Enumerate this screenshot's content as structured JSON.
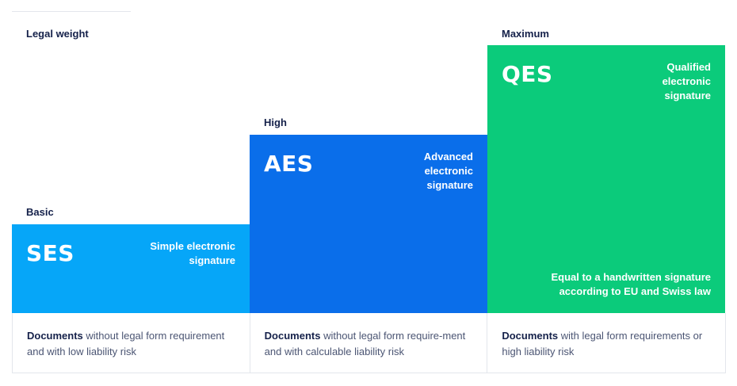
{
  "header": {
    "axis_label": "Legal weight"
  },
  "levels": [
    {
      "level": "Basic",
      "abbr": "SES",
      "full_name": "Simple electronic signature",
      "color": "#06a6f8",
      "description_bold": "Documents",
      "description_rest": " without legal form requirement and with low liability risk"
    },
    {
      "level": "High",
      "abbr": "AES",
      "full_name": "Advanced electronic signature",
      "color": "#0a6eea",
      "description_bold": "Documents",
      "description_rest": " without legal form require-ment and with calculable liability risk"
    },
    {
      "level": "Maximum",
      "abbr": "QES",
      "full_name": "Qualified electronic signature",
      "color": "#0bcb7b",
      "note": "Equal to a handwritten signature according to EU and Swiss law",
      "description_bold": "Documents",
      "description_rest": " with legal form requirements or high liability risk"
    }
  ]
}
